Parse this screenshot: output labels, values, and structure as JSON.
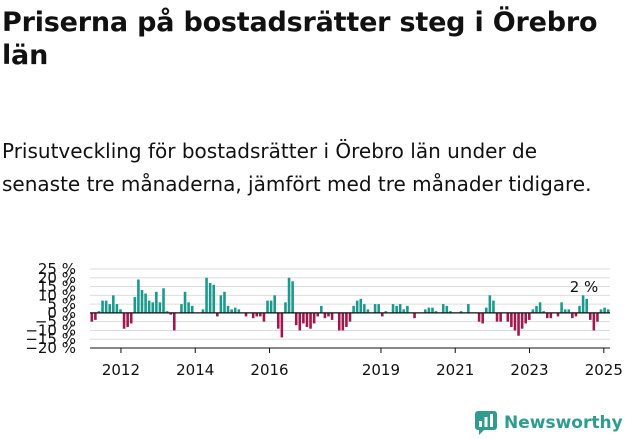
{
  "title": "Priserna på bostadsrätter steg i Örebro län",
  "subtitle": "Prisutveckling för bostadsrätter i Örebro län under de senaste tre månaderna, jämfört med tre månader tidigare.",
  "brand": {
    "name": "Newsworthy",
    "icon": "newsworthy-logo-icon"
  },
  "colors": {
    "positive": "#1a9a8c",
    "negative": "#a0174d",
    "grid": "#dddddd",
    "axis": "#111111"
  },
  "chart_data": {
    "type": "bar",
    "x_start": "2011-03",
    "x_end": "2025-03",
    "xticks": [
      "2012",
      "2014",
      "2016",
      "2019",
      "2021",
      "2023",
      "2025"
    ],
    "yticks": [
      "25 %",
      "20 %",
      "15 %",
      "10 %",
      "5 %",
      "0 %",
      "−5 %",
      "−10 %",
      "−15 %",
      "−20 %"
    ],
    "ylim": [
      -20,
      25
    ],
    "grid": true,
    "annotation": "2 %",
    "values": [
      -5,
      -4,
      1,
      7,
      7,
      5,
      10,
      5,
      2,
      -9,
      -8,
      -6,
      9,
      19,
      13,
      11,
      7,
      6,
      12,
      6,
      14,
      1,
      -1,
      -10,
      0,
      5,
      12,
      6,
      4,
      0,
      0,
      2,
      20,
      17,
      16,
      -2,
      10,
      12,
      4,
      2,
      3,
      2,
      0,
      -2,
      0,
      -3,
      -2,
      -2,
      -5,
      7,
      7,
      10,
      -9,
      -14,
      6,
      20,
      18,
      -7,
      -10,
      -6,
      -8,
      -9,
      -6,
      -2,
      4,
      -3,
      -2,
      -4,
      0,
      -10,
      -10,
      -8,
      -5,
      4,
      7,
      8,
      5,
      2,
      0,
      5,
      5,
      -2,
      1,
      0,
      5,
      4,
      5,
      2,
      4,
      0,
      -3,
      0,
      0,
      2,
      3,
      3,
      1,
      0,
      5,
      4,
      1,
      0,
      0,
      1,
      0,
      5,
      0,
      0,
      -5,
      -6,
      3,
      10,
      7,
      -5,
      -5,
      0,
      -5,
      -8,
      -10,
      -13,
      -9,
      -6,
      -4,
      2,
      4,
      6,
      1,
      -3,
      -3,
      0,
      -2,
      6,
      2,
      2,
      -3,
      -2,
      4,
      10,
      8,
      -4,
      -10,
      -5,
      2,
      3,
      2
    ]
  }
}
